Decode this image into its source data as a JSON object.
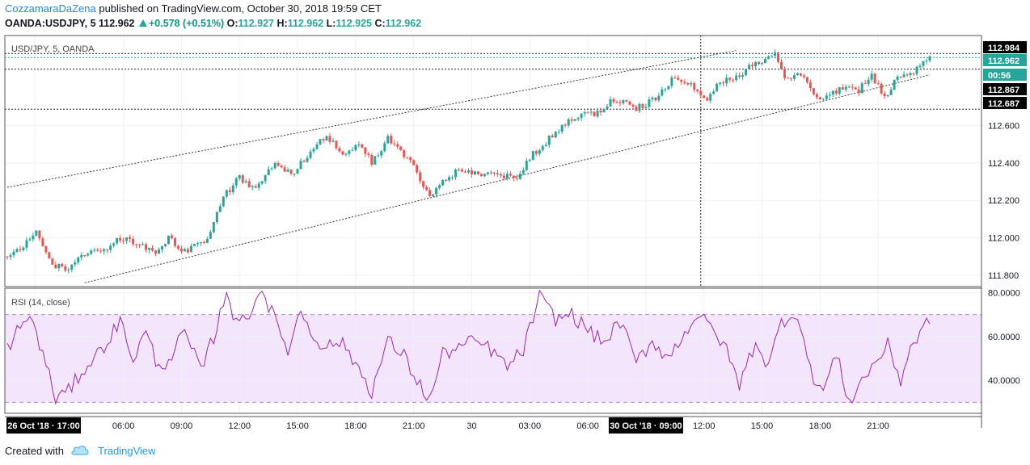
{
  "header": {
    "author": "CozzamaraDaZena",
    "published_text": "published on TradingView.com, October 30, 2018 19:59 CET",
    "symbol_line": "OANDA:USDJPY, 5",
    "last": "112.962",
    "change": "+0.578 (+0.51%)",
    "o_label": "O:",
    "o": "112.927",
    "h_label": "H:",
    "h": "112.962",
    "l_label": "L:",
    "l": "112.925",
    "c_label": "C:",
    "c": "112.962"
  },
  "footer": {
    "created_with": "Created with",
    "brand": "TradingView"
  },
  "colors": {
    "up": "#26a69a",
    "down": "#ef5350",
    "rsi": "#9c27b0",
    "rsi_band": "#f3e5fb",
    "grid": "#eef0f3",
    "axis_text": "#131722",
    "label_bg": "#000000",
    "label_green": "#26a69a"
  },
  "chart_data": [
    {
      "type": "candlestick",
      "title": "USD/JPY, 5, OANDA",
      "symbol": "OANDA:USDJPY",
      "timeframe": "5",
      "x_tick_labels": [
        "26 Oct '18 · 17:00",
        "06:00",
        "09:00",
        "12:00",
        "15:00",
        "18:00",
        "21:00",
        "30",
        "03:00",
        "06:00",
        "30 Oct '18 · 09:00",
        "12:00",
        "15:00",
        "18:00",
        "21:00"
      ],
      "y_tick_labels": [
        "112.600",
        "112.400",
        "112.200",
        "112.000",
        "111.800"
      ],
      "ylim": [
        111.74,
        113.08
      ],
      "price_labels": [
        {
          "value": "112.984",
          "style": "black"
        },
        {
          "value": "112.962",
          "style": "green"
        },
        {
          "value": "00:56",
          "style": "green"
        },
        {
          "value": "112.867",
          "style": "black"
        },
        {
          "value": "112.687",
          "style": "black"
        }
      ],
      "path_points": [
        [
          0,
          111.9
        ],
        [
          6,
          111.97
        ],
        [
          9,
          112.03
        ],
        [
          14,
          111.86
        ],
        [
          18,
          111.83
        ],
        [
          24,
          111.91
        ],
        [
          31,
          111.94
        ],
        [
          35,
          112.0
        ],
        [
          42,
          111.95
        ],
        [
          46,
          111.92
        ],
        [
          50,
          112.0
        ],
        [
          55,
          111.93
        ],
        [
          59,
          111.97
        ],
        [
          62,
          112.0
        ],
        [
          67,
          112.22
        ],
        [
          72,
          112.32
        ],
        [
          77,
          112.26
        ],
        [
          83,
          112.41
        ],
        [
          88,
          112.34
        ],
        [
          95,
          112.48
        ],
        [
          99,
          112.54
        ],
        [
          104,
          112.45
        ],
        [
          109,
          112.5
        ],
        [
          113,
          112.4
        ],
        [
          118,
          112.53
        ],
        [
          122,
          112.47
        ],
        [
          126,
          112.38
        ],
        [
          131,
          112.21
        ],
        [
          135,
          112.31
        ],
        [
          140,
          112.36
        ],
        [
          145,
          112.34
        ],
        [
          151,
          112.35
        ],
        [
          158,
          112.31
        ],
        [
          163,
          112.45
        ],
        [
          170,
          112.56
        ],
        [
          176,
          112.65
        ],
        [
          182,
          112.66
        ],
        [
          188,
          112.74
        ],
        [
          195,
          112.69
        ],
        [
          201,
          112.74
        ],
        [
          207,
          112.87
        ],
        [
          212,
          112.82
        ],
        [
          217,
          112.74
        ],
        [
          221,
          112.84
        ],
        [
          225,
          112.84
        ],
        [
          231,
          112.92
        ],
        [
          235,
          112.94
        ],
        [
          238,
          112.98
        ],
        [
          241,
          112.84
        ],
        [
          246,
          112.88
        ],
        [
          251,
          112.75
        ],
        [
          256,
          112.77
        ],
        [
          260,
          112.82
        ],
        [
          264,
          112.79
        ],
        [
          268,
          112.86
        ],
        [
          272,
          112.75
        ],
        [
          276,
          112.86
        ],
        [
          281,
          112.89
        ],
        [
          286,
          112.96
        ]
      ],
      "trendlines": [
        {
          "name": "upper-channel",
          "from": [
            0,
            112.27
          ],
          "to": [
            226,
            113.0
          ]
        },
        {
          "name": "lower-channel",
          "from": [
            24,
            111.76
          ],
          "to": [
            286,
            112.87
          ]
        }
      ],
      "horizontal_lines": [
        112.984,
        112.962,
        112.9,
        112.687
      ],
      "crosshair_x_index": 215
    },
    {
      "type": "line",
      "title": "RSI (14, close)",
      "y_tick_labels": [
        "80.0000",
        "60.0000",
        "40.0000"
      ],
      "ylim": [
        25,
        82
      ],
      "band": [
        30,
        70
      ],
      "path_points": [
        [
          0,
          55
        ],
        [
          3,
          62
        ],
        [
          7,
          70
        ],
        [
          11,
          52
        ],
        [
          15,
          32
        ],
        [
          19,
          35
        ],
        [
          23,
          44
        ],
        [
          27,
          50
        ],
        [
          31,
          58
        ],
        [
          35,
          67
        ],
        [
          39,
          50
        ],
        [
          43,
          62
        ],
        [
          47,
          45
        ],
        [
          51,
          52
        ],
        [
          55,
          62
        ],
        [
          60,
          44
        ],
        [
          65,
          64
        ],
        [
          68,
          82
        ],
        [
          71,
          65
        ],
        [
          75,
          71
        ],
        [
          79,
          82
        ],
        [
          83,
          67
        ],
        [
          87,
          54
        ],
        [
          91,
          72
        ],
        [
          95,
          60
        ],
        [
          99,
          55
        ],
        [
          103,
          58
        ],
        [
          108,
          48
        ],
        [
          113,
          35
        ],
        [
          118,
          58
        ],
        [
          123,
          51
        ],
        [
          127,
          40
        ],
        [
          131,
          31
        ],
        [
          135,
          52
        ],
        [
          140,
          55
        ],
        [
          145,
          58
        ],
        [
          150,
          54
        ],
        [
          155,
          46
        ],
        [
          160,
          54
        ],
        [
          165,
          78
        ],
        [
          170,
          68
        ],
        [
          175,
          70
        ],
        [
          180,
          63
        ],
        [
          185,
          57
        ],
        [
          190,
          67
        ],
        [
          195,
          48
        ],
        [
          200,
          58
        ],
        [
          205,
          50
        ],
        [
          210,
          62
        ],
        [
          214,
          70
        ],
        [
          218,
          64
        ],
        [
          222,
          57
        ],
        [
          227,
          38
        ],
        [
          232,
          58
        ],
        [
          236,
          46
        ],
        [
          240,
          67
        ],
        [
          245,
          71
        ],
        [
          249,
          44
        ],
        [
          253,
          35
        ],
        [
          257,
          52
        ],
        [
          261,
          30
        ],
        [
          265,
          40
        ],
        [
          269,
          48
        ],
        [
          273,
          56
        ],
        [
          277,
          40
        ],
        [
          280,
          55
        ],
        [
          284,
          63
        ],
        [
          286,
          69
        ]
      ],
      "last_value": 69
    }
  ]
}
